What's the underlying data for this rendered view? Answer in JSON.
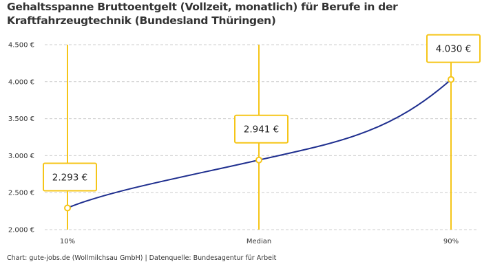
{
  "chart_data": {
    "type": "line",
    "title": "Gehaltsspanne Bruttoentgelt (Vollzeit, monatlich) für Berufe in der Kraftfahrzeugtechnik (Bundesland Thüringen)",
    "categories": [
      "10%",
      "Median",
      "90%"
    ],
    "values": [
      2293,
      2941,
      4030
    ],
    "data_labels": [
      "2.293 €",
      "2.941 €",
      "4.030 €"
    ],
    "ylim": [
      2000,
      4500
    ],
    "yticks": [
      2000,
      2500,
      3000,
      3500,
      4000,
      4500
    ],
    "ytick_labels": [
      "2.000 €",
      "2.500 €",
      "3.000 €",
      "3.500 €",
      "4.000 €",
      "4.500 €"
    ],
    "xlabel": "",
    "ylabel": "",
    "grid": "horizontal dashed",
    "colors": {
      "line": "#1f2f8f",
      "accent": "#f5c518",
      "grid": "#cccccc"
    }
  },
  "credit": "Chart: gute-jobs.de (Wollmilchsau GmbH) | Datenquelle: Bundesagentur für Arbeit"
}
